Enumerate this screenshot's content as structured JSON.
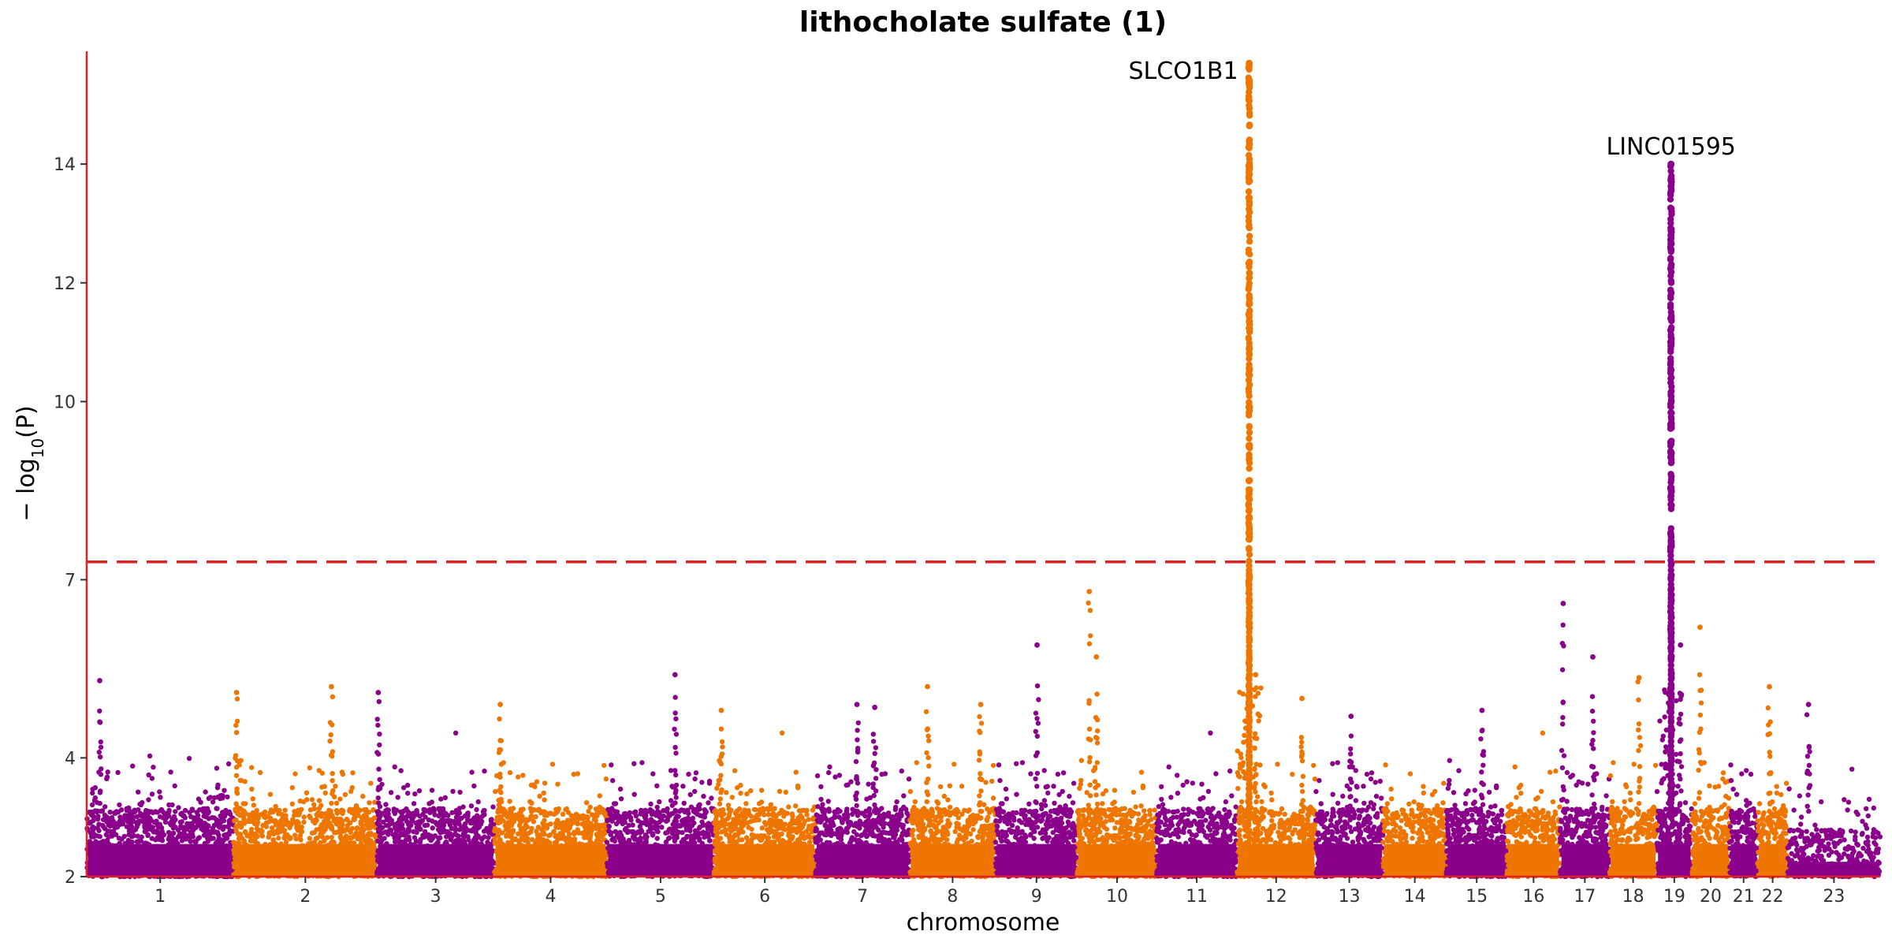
{
  "chart_data": {
    "type": "scatter",
    "title": "lithocholate sulfate (1)",
    "xlabel": "chromosome",
    "ylabel_prefix": "− log",
    "ylabel_sub": "10",
    "ylabel_suffix": "(P)",
    "ylim": [
      2,
      15.9
    ],
    "yticks": [
      2,
      4,
      7,
      10,
      12,
      14
    ],
    "threshold": 7.3,
    "colors": {
      "odd": "#8b008b",
      "even": "#ee7600",
      "axis": "#dd2222",
      "threshold": "#dd2222"
    },
    "chromosomes": [
      {
        "label": "1",
        "size": 248
      },
      {
        "label": "2",
        "size": 242
      },
      {
        "label": "3",
        "size": 198
      },
      {
        "label": "4",
        "size": 190
      },
      {
        "label": "5",
        "size": 181
      },
      {
        "label": "6",
        "size": 171
      },
      {
        "label": "7",
        "size": 159
      },
      {
        "label": "8",
        "size": 145
      },
      {
        "label": "9",
        "size": 138
      },
      {
        "label": "10",
        "size": 134
      },
      {
        "label": "11",
        "size": 135
      },
      {
        "label": "12",
        "size": 133
      },
      {
        "label": "13",
        "size": 114
      },
      {
        "label": "14",
        "size": 107
      },
      {
        "label": "15",
        "size": 102
      },
      {
        "label": "16",
        "size": 90
      },
      {
        "label": "17",
        "size": 83
      },
      {
        "label": "18",
        "size": 80
      },
      {
        "label": "19",
        "size": 59
      },
      {
        "label": "20",
        "size": 64
      },
      {
        "label": "21",
        "size": 47
      },
      {
        "label": "22",
        "size": 51
      },
      {
        "label": "23",
        "size": 156
      }
    ],
    "peaks": [
      {
        "chrom": "12",
        "pos": 21,
        "top": 15.7,
        "gene": "SLCO1B1",
        "label_side": "left"
      },
      {
        "chrom": "19",
        "pos": 24,
        "top": 14.0,
        "gene": "LINC01595",
        "label_side": "center"
      }
    ],
    "minor_hits": [
      {
        "chrom": "10",
        "pos": 20,
        "value": 6.8
      },
      {
        "chrom": "17",
        "pos": 5,
        "value": 6.6
      },
      {
        "chrom": "20",
        "pos": 14,
        "value": 6.2
      },
      {
        "chrom": "9",
        "pos": 70,
        "value": 5.9
      },
      {
        "chrom": "10",
        "pos": 32,
        "value": 5.7
      },
      {
        "chrom": "19",
        "pos": 40,
        "value": 5.9
      },
      {
        "chrom": "1",
        "pos": 22,
        "value": 5.3
      },
      {
        "chrom": "5",
        "pos": 115,
        "value": 5.4
      },
      {
        "chrom": "12",
        "pos": 32,
        "value": 5.4
      },
      {
        "chrom": "2",
        "pos": 165,
        "value": 5.2
      },
      {
        "chrom": "2",
        "pos": 5,
        "value": 5.1
      },
      {
        "chrom": "3",
        "pos": 2,
        "value": 5.1
      },
      {
        "chrom": "8",
        "pos": 30,
        "value": 5.2
      },
      {
        "chrom": "22",
        "pos": 20,
        "value": 5.2
      },
      {
        "chrom": "17",
        "pos": 55,
        "value": 5.7
      },
      {
        "chrom": "18",
        "pos": 50,
        "value": 5.35
      },
      {
        "chrom": "12",
        "pos": 110,
        "value": 5.0
      },
      {
        "chrom": "23",
        "pos": 35,
        "value": 4.9
      },
      {
        "chrom": "6",
        "pos": 12,
        "value": 4.8
      },
      {
        "chrom": "4",
        "pos": 10,
        "value": 4.9
      },
      {
        "chrom": "8",
        "pos": 120,
        "value": 4.9
      },
      {
        "chrom": "13",
        "pos": 60,
        "value": 4.7
      },
      {
        "chrom": "15",
        "pos": 60,
        "value": 4.8
      },
      {
        "chrom": "7",
        "pos": 70,
        "value": 4.9
      },
      {
        "chrom": "7",
        "pos": 100,
        "value": 4.85
      }
    ]
  }
}
